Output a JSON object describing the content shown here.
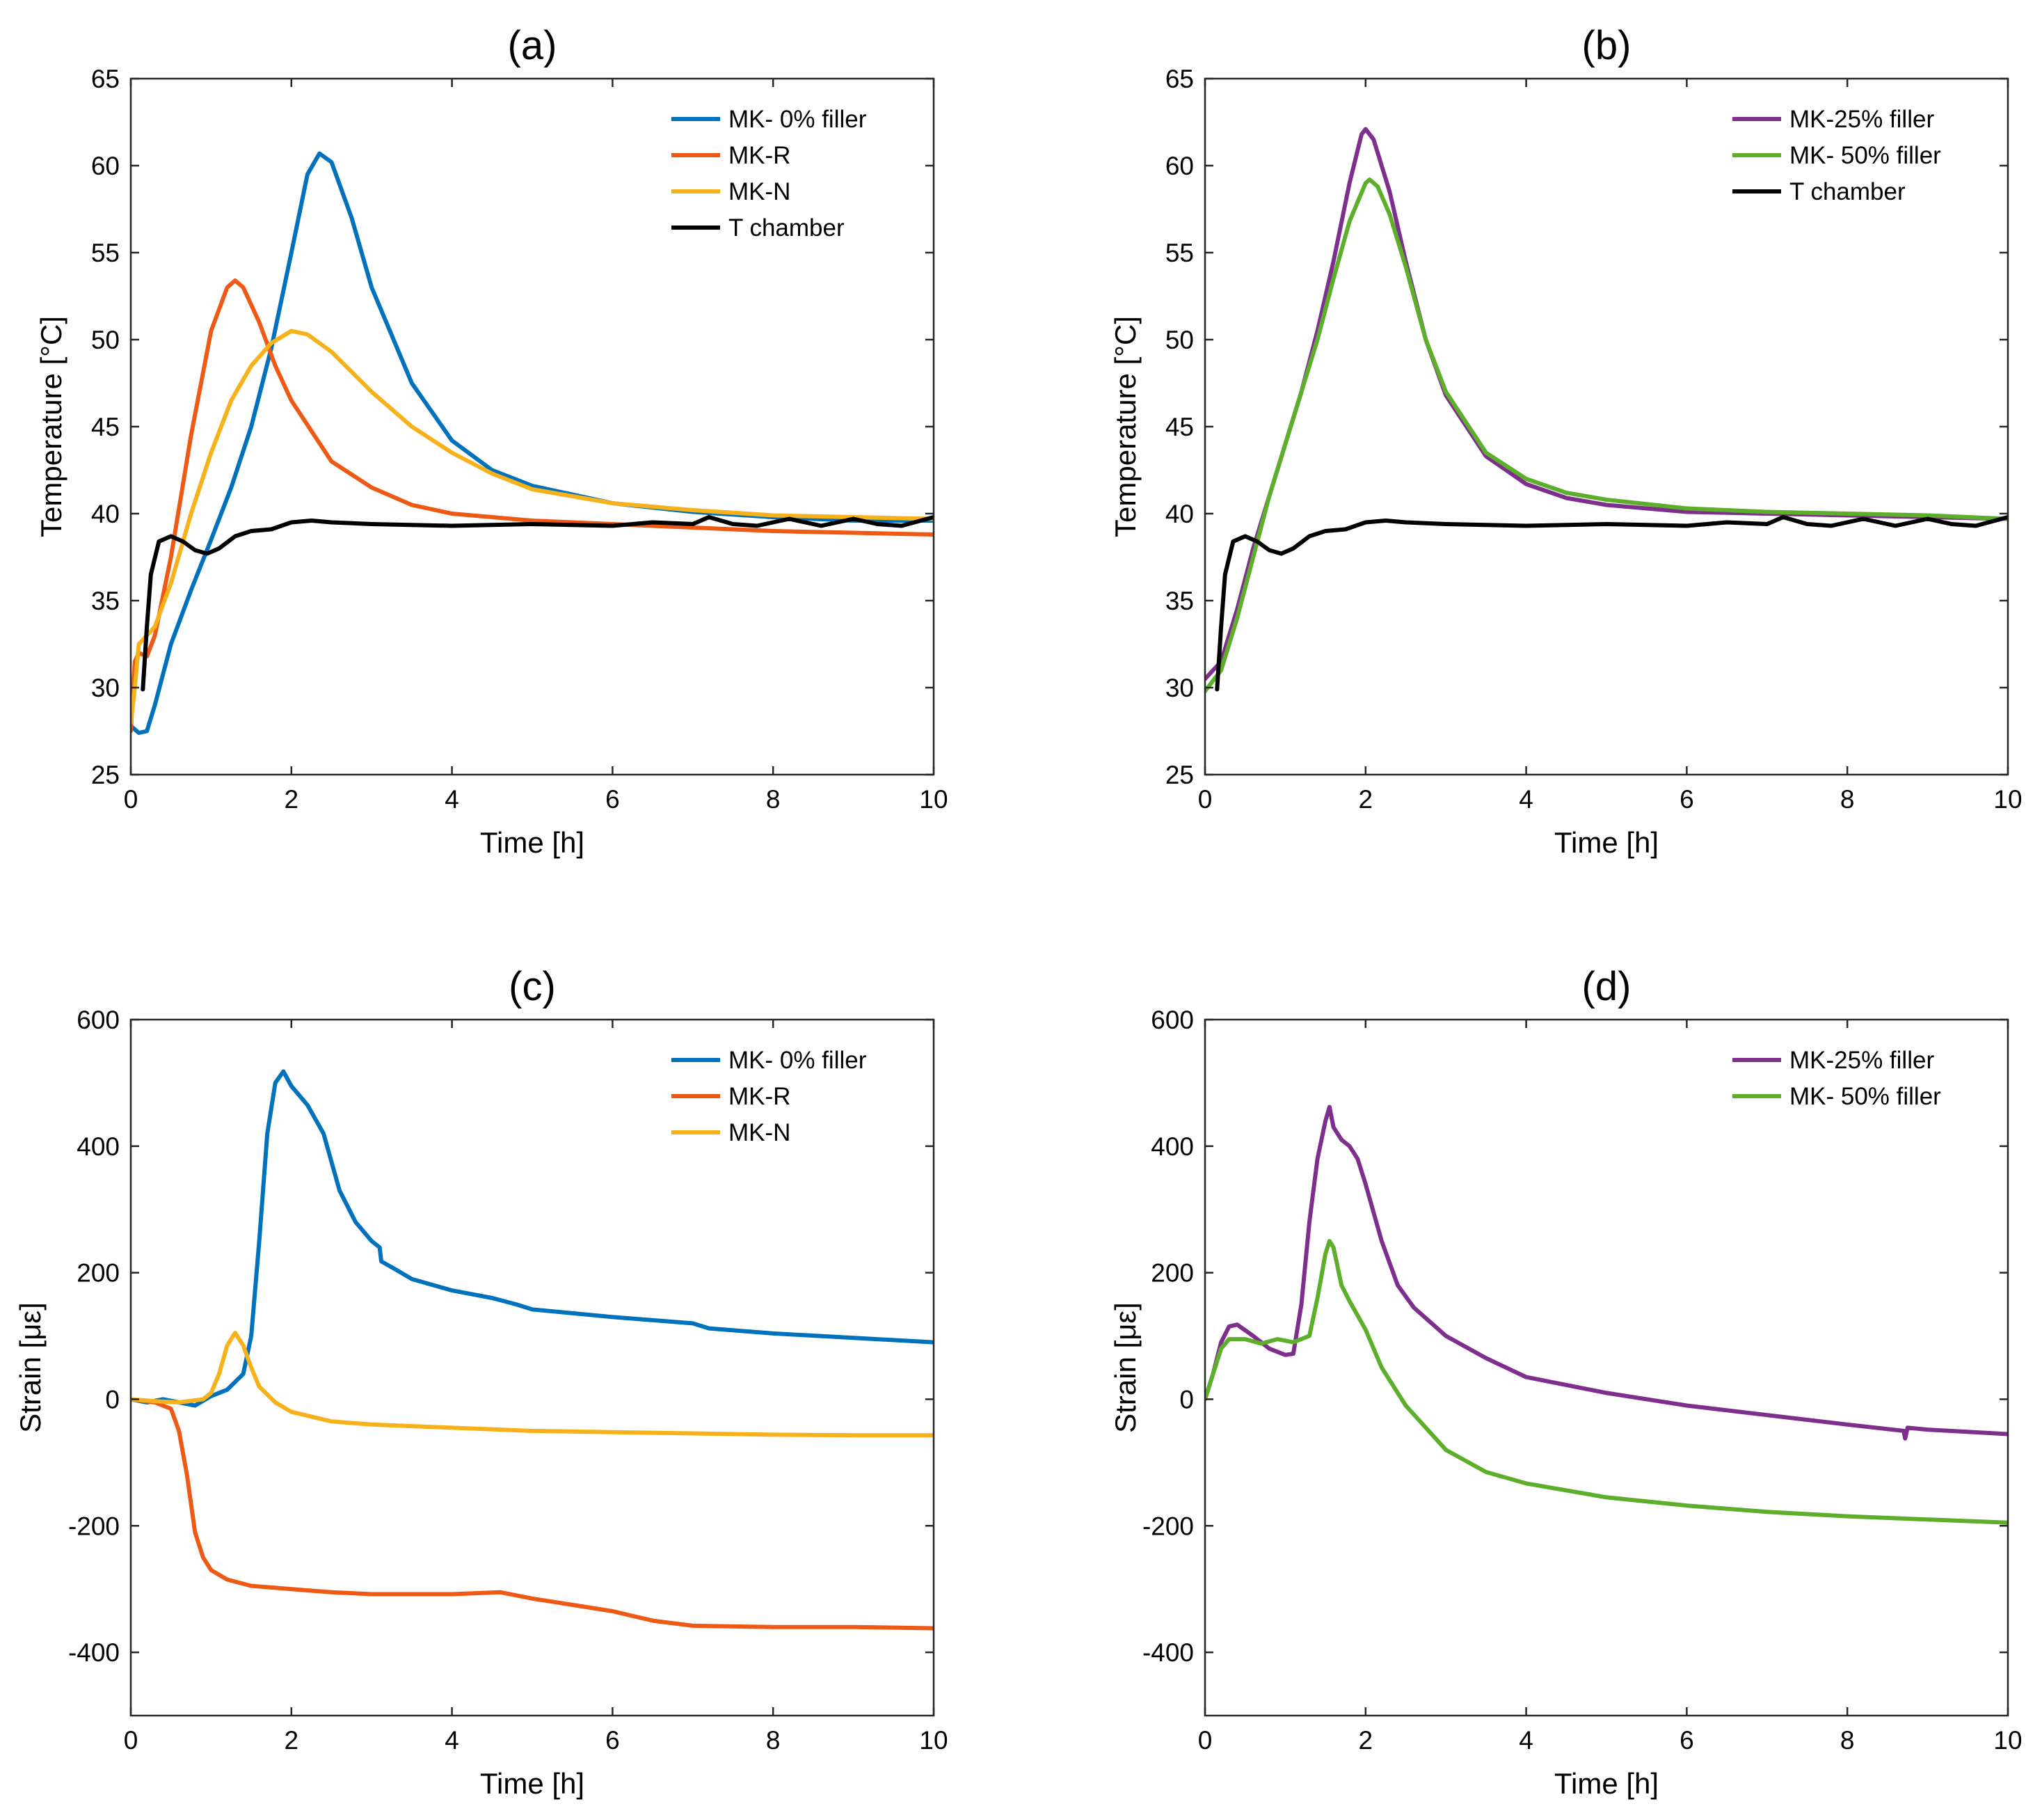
{
  "colors": {
    "blue": "#0072BD",
    "orange": "#EE5A16",
    "yellow": "#F6B11B",
    "black": "#000000",
    "purple": "#7E2F8E",
    "green": "#5DAF2B"
  },
  "chart_data": [
    {
      "id": "a",
      "type": "line",
      "title": "(a)",
      "xlabel": "Time [h]",
      "ylabel": "Temperature [°C]",
      "xlim": [
        0,
        10
      ],
      "ylim": [
        25,
        65
      ],
      "xticks": [
        0,
        2,
        4,
        6,
        8,
        10
      ],
      "yticks": [
        25,
        30,
        35,
        40,
        45,
        50,
        55,
        60,
        65
      ],
      "grid": false,
      "legend_position": "top-right",
      "series": [
        {
          "name": "MK- 0% filler",
          "color": "#0072BD",
          "x": [
            0,
            0.1,
            0.2,
            0.3,
            0.5,
            0.75,
            1.0,
            1.25,
            1.5,
            1.75,
            2.0,
            2.2,
            2.35,
            2.5,
            2.75,
            3.0,
            3.5,
            4.0,
            4.5,
            5.0,
            6.0,
            7.0,
            8.0,
            9.0,
            10.0
          ],
          "y": [
            27.8,
            27.4,
            27.5,
            29.0,
            32.5,
            35.6,
            38.5,
            41.5,
            45.0,
            49.5,
            55.0,
            59.5,
            60.7,
            60.2,
            57.0,
            53.0,
            47.5,
            44.2,
            42.5,
            41.6,
            40.6,
            40.1,
            39.8,
            39.6,
            39.6
          ]
        },
        {
          "name": "MK-R",
          "color": "#EE5A16",
          "x": [
            0,
            0.05,
            0.1,
            0.2,
            0.3,
            0.5,
            0.75,
            1.0,
            1.2,
            1.3,
            1.4,
            1.6,
            1.8,
            2.0,
            2.5,
            3.0,
            3.5,
            4.0,
            5.0,
            6.0,
            7.0,
            8.0,
            9.0,
            10.0
          ],
          "y": [
            27.5,
            31.5,
            32.0,
            31.8,
            33.0,
            37.5,
            44.5,
            50.5,
            53.0,
            53.4,
            53.0,
            51.0,
            48.5,
            46.5,
            43.0,
            41.5,
            40.5,
            40.0,
            39.6,
            39.4,
            39.2,
            39.0,
            38.9,
            38.8
          ]
        },
        {
          "name": "MK-N",
          "color": "#F6B11B",
          "x": [
            0,
            0.05,
            0.1,
            0.2,
            0.3,
            0.5,
            0.75,
            1.0,
            1.25,
            1.5,
            1.75,
            2.0,
            2.2,
            2.5,
            3.0,
            3.5,
            4.0,
            4.5,
            5.0,
            6.0,
            7.0,
            8.0,
            9.0,
            10.0
          ],
          "y": [
            28.0,
            30.0,
            32.5,
            33.0,
            33.5,
            36.0,
            40.0,
            43.5,
            46.5,
            48.5,
            49.8,
            50.5,
            50.3,
            49.3,
            47.0,
            45.0,
            43.5,
            42.3,
            41.4,
            40.6,
            40.2,
            39.9,
            39.8,
            39.7
          ]
        },
        {
          "name": "T chamber",
          "color": "#000000",
          "x": [
            0.15,
            0.2,
            0.25,
            0.35,
            0.5,
            0.65,
            0.8,
            0.95,
            1.1,
            1.3,
            1.5,
            1.75,
            2.0,
            2.25,
            2.5,
            3.0,
            4.0,
            5.0,
            6.0,
            6.5,
            7.0,
            7.2,
            7.5,
            7.8,
            8.2,
            8.6,
            9.0,
            9.3,
            9.6,
            10.0
          ],
          "y": [
            29.9,
            33.5,
            36.5,
            38.4,
            38.7,
            38.4,
            37.9,
            37.7,
            38.0,
            38.7,
            39.0,
            39.1,
            39.5,
            39.6,
            39.5,
            39.4,
            39.3,
            39.4,
            39.3,
            39.5,
            39.4,
            39.8,
            39.4,
            39.3,
            39.7,
            39.3,
            39.7,
            39.4,
            39.3,
            39.8
          ]
        }
      ]
    },
    {
      "id": "b",
      "type": "line",
      "title": "(b)",
      "xlabel": "Time [h]",
      "ylabel": "Temperature [°C]",
      "xlim": [
        0,
        10
      ],
      "ylim": [
        25,
        65
      ],
      "xticks": [
        0,
        2,
        4,
        6,
        8,
        10
      ],
      "yticks": [
        25,
        30,
        35,
        40,
        45,
        50,
        55,
        60,
        65
      ],
      "grid": false,
      "legend_position": "top-right",
      "series": [
        {
          "name": "MK-25% filler",
          "color": "#7E2F8E",
          "x": [
            0,
            0.2,
            0.4,
            0.6,
            0.8,
            1.0,
            1.2,
            1.4,
            1.6,
            1.8,
            1.95,
            2.0,
            2.1,
            2.3,
            2.5,
            2.75,
            3.0,
            3.5,
            4.0,
            4.5,
            5.0,
            6.0,
            7.0,
            8.0,
            9.0,
            10.0
          ],
          "y": [
            30.5,
            31.5,
            34.5,
            38.0,
            41.0,
            44.0,
            47.0,
            50.5,
            54.5,
            59.0,
            61.8,
            62.1,
            61.5,
            58.5,
            54.5,
            50.0,
            46.8,
            43.3,
            41.7,
            40.9,
            40.5,
            40.1,
            40.0,
            39.9,
            39.8,
            39.7
          ]
        },
        {
          "name": "MK- 50% filler",
          "color": "#5DAF2B",
          "x": [
            0,
            0.2,
            0.4,
            0.6,
            0.8,
            1.0,
            1.2,
            1.4,
            1.6,
            1.8,
            2.0,
            2.05,
            2.15,
            2.3,
            2.5,
            2.75,
            3.0,
            3.5,
            4.0,
            4.5,
            5.0,
            6.0,
            7.0,
            8.0,
            9.0,
            10.0
          ],
          "y": [
            29.8,
            31.0,
            34.0,
            37.5,
            41.0,
            44.0,
            47.0,
            50.0,
            53.5,
            56.8,
            59.0,
            59.2,
            58.8,
            57.2,
            54.2,
            50.0,
            47.0,
            43.5,
            42.0,
            41.2,
            40.8,
            40.3,
            40.1,
            40.0,
            39.9,
            39.7
          ]
        },
        {
          "name": "T chamber",
          "color": "#000000",
          "x": [
            0.15,
            0.2,
            0.25,
            0.35,
            0.5,
            0.65,
            0.8,
            0.95,
            1.1,
            1.3,
            1.5,
            1.75,
            2.0,
            2.25,
            2.5,
            3.0,
            4.0,
            5.0,
            6.0,
            6.5,
            7.0,
            7.2,
            7.5,
            7.8,
            8.2,
            8.6,
            9.0,
            9.3,
            9.6,
            10.0
          ],
          "y": [
            29.9,
            33.5,
            36.5,
            38.4,
            38.7,
            38.4,
            37.9,
            37.7,
            38.0,
            38.7,
            39.0,
            39.1,
            39.5,
            39.6,
            39.5,
            39.4,
            39.3,
            39.4,
            39.3,
            39.5,
            39.4,
            39.8,
            39.4,
            39.3,
            39.7,
            39.3,
            39.7,
            39.4,
            39.3,
            39.8
          ]
        }
      ]
    },
    {
      "id": "c",
      "type": "line",
      "title": "(c)",
      "xlabel": "Time [h]",
      "ylabel": "Strain [με]",
      "xlim": [
        0,
        10
      ],
      "ylim": [
        -500,
        600
      ],
      "xticks": [
        0,
        2,
        4,
        6,
        8,
        10
      ],
      "yticks": [
        -400,
        -200,
        0,
        200,
        400,
        600
      ],
      "grid": false,
      "legend_position": "top-right",
      "series": [
        {
          "name": "MK- 0% filler",
          "color": "#0072BD",
          "x": [
            0,
            0.2,
            0.4,
            0.6,
            0.8,
            1.0,
            1.2,
            1.4,
            1.5,
            1.6,
            1.7,
            1.8,
            1.9,
            2.0,
            2.2,
            2.4,
            2.6,
            2.8,
            3.0,
            3.1,
            3.12,
            3.3,
            3.5,
            4.0,
            4.5,
            4.8,
            5.0,
            6.0,
            7.0,
            7.2,
            8.0,
            9.0,
            10.0
          ],
          "y": [
            0,
            -5,
            0,
            -5,
            -10,
            5,
            15,
            40,
            100,
            250,
            420,
            500,
            518,
            495,
            465,
            420,
            330,
            280,
            250,
            240,
            218,
            205,
            190,
            172,
            160,
            150,
            142,
            130,
            120,
            112,
            104,
            97,
            90
          ]
        },
        {
          "name": "MK-R",
          "color": "#EE5A16",
          "x": [
            0,
            0.3,
            0.5,
            0.6,
            0.7,
            0.8,
            0.9,
            1.0,
            1.2,
            1.5,
            2.0,
            2.5,
            3.0,
            4.0,
            4.6,
            5.0,
            5.5,
            6.0,
            6.5,
            7.0,
            8.0,
            9.0,
            10.0
          ],
          "y": [
            0,
            -5,
            -15,
            -50,
            -120,
            -210,
            -250,
            -270,
            -285,
            -295,
            -300,
            -305,
            -308,
            -308,
            -305,
            -315,
            -325,
            -335,
            -350,
            -358,
            -360,
            -360,
            -362
          ]
        },
        {
          "name": "MK-N",
          "color": "#F6B11B",
          "x": [
            0,
            0.3,
            0.6,
            0.9,
            1.0,
            1.1,
            1.2,
            1.3,
            1.4,
            1.5,
            1.6,
            1.8,
            2.0,
            2.5,
            3.0,
            4.0,
            5.0,
            6.0,
            7.0,
            8.0,
            9.0,
            10.0
          ],
          "y": [
            0,
            -3,
            -5,
            0,
            10,
            40,
            85,
            105,
            85,
            50,
            20,
            -5,
            -20,
            -35,
            -40,
            -45,
            -50,
            -52,
            -54,
            -56,
            -57,
            -57
          ]
        }
      ]
    },
    {
      "id": "d",
      "type": "line",
      "title": "(d)",
      "xlabel": "Time [h]",
      "ylabel": "Strain [με]",
      "xlim": [
        0,
        10
      ],
      "ylim": [
        -500,
        600
      ],
      "xticks": [
        0,
        2,
        4,
        6,
        8,
        10
      ],
      "yticks": [
        -400,
        -200,
        0,
        200,
        400,
        600
      ],
      "grid": false,
      "legend_position": "top-right",
      "series": [
        {
          "name": "MK-25% filler",
          "color": "#7E2F8E",
          "x": [
            0,
            0.1,
            0.2,
            0.3,
            0.4,
            0.6,
            0.8,
            1.0,
            1.1,
            1.2,
            1.3,
            1.4,
            1.5,
            1.55,
            1.6,
            1.7,
            1.8,
            1.9,
            2.0,
            2.2,
            2.4,
            2.6,
            3.0,
            3.5,
            4.0,
            5.0,
            6.0,
            7.0,
            8.0,
            8.7,
            8.72,
            8.75,
            9.0,
            10.0
          ],
          "y": [
            0,
            40,
            90,
            115,
            118,
            100,
            80,
            70,
            72,
            150,
            280,
            380,
            440,
            462,
            430,
            410,
            400,
            380,
            340,
            250,
            180,
            145,
            100,
            65,
            35,
            10,
            -10,
            -25,
            -40,
            -50,
            -62,
            -45,
            -48,
            -55
          ]
        },
        {
          "name": "MK- 50% filler",
          "color": "#5DAF2B",
          "x": [
            0,
            0.1,
            0.2,
            0.3,
            0.5,
            0.7,
            0.9,
            1.1,
            1.3,
            1.4,
            1.5,
            1.55,
            1.6,
            1.7,
            1.8,
            2.0,
            2.2,
            2.5,
            3.0,
            3.5,
            4.0,
            5.0,
            6.0,
            7.0,
            8.0,
            9.0,
            10.0
          ],
          "y": [
            0,
            40,
            80,
            95,
            95,
            88,
            95,
            90,
            100,
            160,
            230,
            250,
            240,
            180,
            155,
            110,
            50,
            -10,
            -80,
            -115,
            -133,
            -155,
            -168,
            -178,
            -185,
            -190,
            -195
          ]
        }
      ]
    }
  ]
}
